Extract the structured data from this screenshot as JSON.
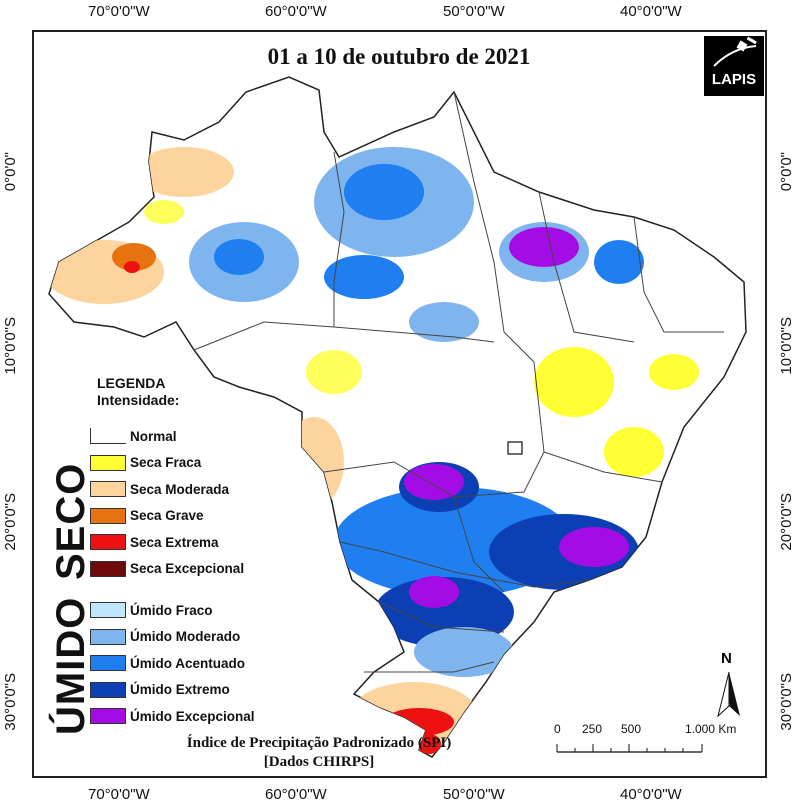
{
  "title": "01 a 10 de outubro de 2021",
  "logo": {
    "text": "LAPIS",
    "icon": "satellite-icon"
  },
  "coordinates": {
    "top": [
      "70°0'0\"W",
      "60°0'0\"W",
      "50°0'0\"W",
      "40°0'0\"W"
    ],
    "bottom": [
      "70°0'0\"W",
      "60°0'0\"W",
      "50°0'0\"W",
      "40°0'0\"W"
    ],
    "left": [
      "0°0'0\"",
      "10°0'0\"S",
      "20°0'0\"S",
      "30°0'0\"S"
    ],
    "right": [
      "0°0'0\"",
      "10°0'0\"S",
      "20°0'0\"S",
      "30°0'0\"S"
    ]
  },
  "legend": {
    "title": "LEGENDA",
    "subtitle": "Intensidade:",
    "group_dry": "SECO",
    "group_wet": "ÚMIDO",
    "dry_items": [
      {
        "label": "Normal",
        "color": "#ffffff"
      },
      {
        "label": "Seca Fraca",
        "color": "#ffff33"
      },
      {
        "label": "Seca Moderada",
        "color": "#fdd49e"
      },
      {
        "label": "Seca Grave",
        "color": "#e6730f"
      },
      {
        "label": "Seca Extrema",
        "color": "#ee1111"
      },
      {
        "label": "Seca Excepcional",
        "color": "#6e0a0a"
      }
    ],
    "wet_items": [
      {
        "label": "Úmido Fraco",
        "color": "#bfe6fb"
      },
      {
        "label": "Úmido Moderado",
        "color": "#7fb5ef"
      },
      {
        "label": "Úmido Acentuado",
        "color": "#1f7ff0"
      },
      {
        "label": "Úmido Extremo",
        "color": "#0c3fb4"
      },
      {
        "label": "Úmido Excepcional",
        "color": "#a40ce6"
      }
    ]
  },
  "footer": {
    "line1": "Índice de Precipitação Padronizado (SPI)",
    "line2": "[Dados CHIRPS]"
  },
  "scale": {
    "labels": [
      "0",
      "250",
      "500",
      "1.000 Km"
    ]
  },
  "north": {
    "label": "N",
    "icon": "north-arrow-icon"
  }
}
